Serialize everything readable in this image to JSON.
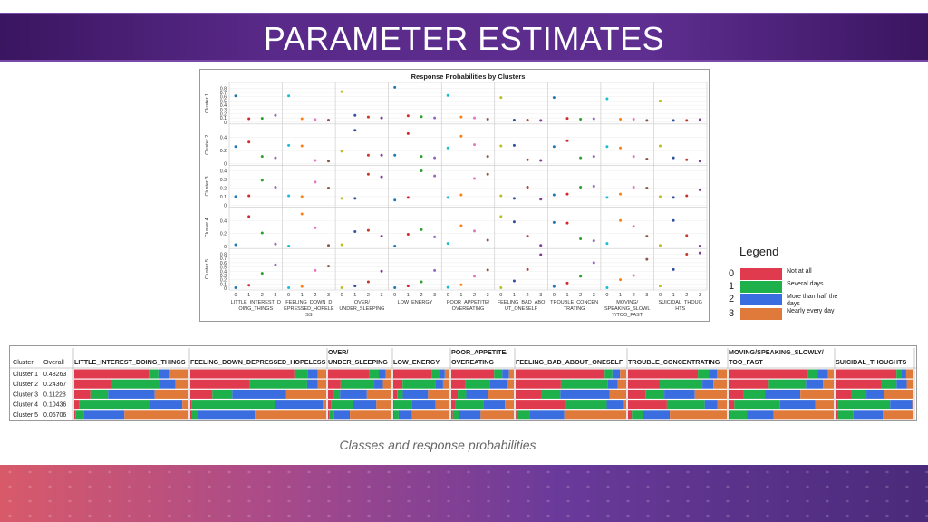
{
  "slide": {
    "title": "PARAMETER ESTIMATES",
    "caption": "Classes and response probabilities"
  },
  "legend": {
    "title": "Legend",
    "items": [
      {
        "code": "0",
        "label": "Not at all",
        "color": "#e03a4e"
      },
      {
        "code": "1",
        "label": "Several days",
        "color": "#1eb04a"
      },
      {
        "code": "2",
        "label": "More than half the days",
        "color": "#3a6ee0"
      },
      {
        "code": "3",
        "label": "Nearly every day",
        "color": "#e07a3a"
      }
    ]
  },
  "chart_data": [
    {
      "type": "scatter",
      "title": "Response Probabilities by Clusters",
      "items": [
        "LITTLE_INTEREST_DOING_THINGS",
        "FEELING_DOWN_DEPRESSED_HOPELESS",
        "OVER/ UNDER_SLEEPING",
        "LOW_ENERGY",
        "POOR_APPETITE/ OVEREATING",
        "FEELING_BAD_ABOUT_ONESELF",
        "TROUBLE_CONCENTRATING",
        "MOVING/ SPEAKING_SLOWLY/TOO_FAST",
        "SUICIDAL_THOUGHTS"
      ],
      "item_labels": [
        [
          "LITTLE_INTEREST_D",
          "OING_THINGS"
        ],
        [
          "FEELING_DOWN_D",
          "EPRESSED_HOPELE",
          "SS"
        ],
        [
          "OVER/",
          "UNDER_SLEEPING"
        ],
        [
          "LOW_ENERGY"
        ],
        [
          "POOR_APPETITE/",
          "OVEREATING"
        ],
        [
          "FEELING_BAD_ABO",
          "UT_ONESELF"
        ],
        [
          "TROUBLE_CONCEN",
          "TRATING"
        ],
        [
          "MOVING/",
          "SPEAKING_SLOWL",
          "Y/TOO_FAST"
        ],
        [
          "SUICIDAL_THOUG",
          "HTS"
        ]
      ],
      "x_ticks": [
        "0",
        "1",
        "2",
        "3"
      ],
      "clusters": [
        {
          "name": "Cluster 1",
          "ylim": [
            0,
            0.85
          ],
          "y_ticks": [
            0,
            0.1,
            0.2,
            0.3,
            0.4,
            0.5,
            0.6,
            0.7,
            0.8
          ],
          "values": [
            [
              0.62,
              0.08,
              0.09,
              0.16
            ],
            [
              0.62,
              0.08,
              0.06,
              0.05
            ],
            [
              0.72,
              0.16,
              0.12,
              0.1
            ],
            [
              0.82,
              0.15,
              0.13,
              0.1
            ],
            [
              0.63,
              0.12,
              0.1,
              0.07
            ],
            [
              0.58,
              0.05,
              0.05,
              0.04
            ],
            [
              0.58,
              0.09,
              0.07,
              0.08
            ],
            [
              0.55,
              0.07,
              0.07,
              0.04
            ],
            [
              0.5,
              0.04,
              0.04,
              0.06
            ]
          ]
        },
        {
          "name": "Cluster 2",
          "ylim": [
            0,
            0.55
          ],
          "y_ticks": [
            0,
            0.2,
            0.4
          ],
          "values": [
            [
              0.26,
              0.33,
              0.11,
              0.09
            ],
            [
              0.28,
              0.27,
              0.05,
              0.04
            ],
            [
              0.19,
              0.51,
              0.13,
              0.13
            ],
            [
              0.13,
              0.46,
              0.11,
              0.09
            ],
            [
              0.24,
              0.42,
              0.29,
              0.11
            ],
            [
              0.27,
              0.28,
              0.06,
              0.05
            ],
            [
              0.26,
              0.35,
              0.09,
              0.11
            ],
            [
              0.26,
              0.24,
              0.11,
              0.07
            ],
            [
              0.27,
              0.09,
              0.06,
              0.04
            ]
          ]
        },
        {
          "name": "Cluster 3",
          "ylim": [
            0,
            0.42
          ],
          "y_ticks": [
            0,
            0.1,
            0.2,
            0.3,
            0.4
          ],
          "values": [
            [
              0.1,
              0.11,
              0.29,
              0.21
            ],
            [
              0.11,
              0.1,
              0.27,
              0.2
            ],
            [
              0.08,
              0.08,
              0.36,
              0.33
            ],
            [
              0.06,
              0.09,
              0.4,
              0.34
            ],
            [
              0.09,
              0.12,
              0.31,
              0.36
            ],
            [
              0.11,
              0.08,
              0.21,
              0.07
            ],
            [
              0.12,
              0.13,
              0.21,
              0.22
            ],
            [
              0.09,
              0.13,
              0.21,
              0.2
            ],
            [
              0.1,
              0.09,
              0.11,
              0.18
            ]
          ]
        },
        {
          "name": "Cluster 4",
          "ylim": [
            0,
            0.55
          ],
          "y_ticks": [
            0,
            0.2,
            0.4
          ],
          "values": [
            [
              0.03,
              0.46,
              0.21,
              0.04
            ],
            [
              0.01,
              0.5,
              0.29,
              0.02
            ],
            [
              0.03,
              0.23,
              0.25,
              0.16
            ],
            [
              0.01,
              0.19,
              0.26,
              0.15
            ],
            [
              0.05,
              0.32,
              0.24,
              0.1
            ],
            [
              0.46,
              0.38,
              0.16,
              0.02
            ],
            [
              0.37,
              0.36,
              0.12,
              0.09
            ],
            [
              0.05,
              0.4,
              0.31,
              0.16
            ],
            [
              0.02,
              0.4,
              0.17,
              0.01
            ]
          ]
        },
        {
          "name": "Cluster 5",
          "ylim": [
            0,
            0.85
          ],
          "y_ticks": [
            0,
            0.1,
            0.2,
            0.3,
            0.4,
            0.5,
            0.6,
            0.7,
            0.8
          ],
          "values": [
            [
              0.01,
              0.07,
              0.35,
              0.55
            ],
            [
              0.01,
              0.04,
              0.42,
              0.52
            ],
            [
              0.01,
              0.05,
              0.15,
              0.4
            ],
            [
              0.01,
              0.05,
              0.15,
              0.42
            ],
            [
              0.02,
              0.08,
              0.28,
              0.43
            ],
            [
              0.01,
              0.17,
              0.44,
              0.79
            ],
            [
              0.04,
              0.12,
              0.28,
              0.6
            ],
            [
              0.01,
              0.2,
              0.3,
              0.68
            ],
            [
              0.05,
              0.44,
              0.8,
              0.83
            ]
          ]
        }
      ]
    },
    {
      "type": "bar",
      "layout": "stacked-100",
      "columns": [
        {
          "key": "cluster",
          "header": [
            "",
            "Cluster"
          ]
        },
        {
          "key": "overall",
          "header": [
            "",
            "Overall"
          ]
        },
        {
          "key": "item",
          "header": [
            "",
            "LITTLE_INTEREST_DOING_THINGS"
          ]
        },
        {
          "key": "item",
          "header": [
            "",
            "FEELING_DOWN_DEPRESSED_HOPELESS"
          ]
        },
        {
          "key": "item",
          "header": [
            "OVER/",
            "UNDER_SLEEPING"
          ]
        },
        {
          "key": "item",
          "header": [
            "",
            "LOW_ENERGY"
          ]
        },
        {
          "key": "item",
          "header": [
            "POOR_APPETITE/",
            "OVEREATING"
          ]
        },
        {
          "key": "item",
          "header": [
            "",
            "FEELING_BAD_ABOUT_ONESELF"
          ]
        },
        {
          "key": "item",
          "header": [
            "",
            "TROUBLE_CONCENTRATING"
          ]
        },
        {
          "key": "item",
          "header": [
            "MOVING/SPEAKING_SLOWLY/",
            "TOO_FAST"
          ]
        },
        {
          "key": "item",
          "header": [
            "",
            "SUICIDAL_THOUGHTS"
          ]
        }
      ],
      "rows": [
        {
          "cluster": "Cluster 1",
          "overall": "0.48263"
        },
        {
          "cluster": "Cluster 2",
          "overall": "0.24367"
        },
        {
          "cluster": "Cluster 3",
          "overall": "0.11228"
        },
        {
          "cluster": "Cluster 4",
          "overall": "0.10436"
        },
        {
          "cluster": "Cluster 5",
          "overall": "0.05706"
        }
      ]
    }
  ]
}
